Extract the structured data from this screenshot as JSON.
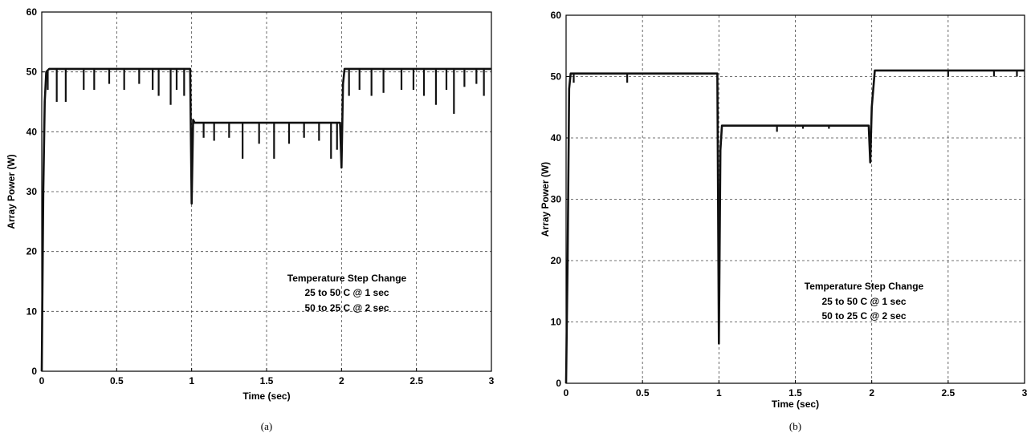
{
  "chart_data": [
    {
      "type": "line",
      "caption": "(a)",
      "xlabel": "Time (sec)",
      "ylabel": "Array Power (W)",
      "xlim": [
        0,
        3
      ],
      "ylim": [
        0,
        60
      ],
      "xticks": [
        "0",
        "0.5",
        "1",
        "1.5",
        "2",
        "2.5",
        "3"
      ],
      "yticks": [
        "0",
        "10",
        "20",
        "30",
        "40",
        "50",
        "60"
      ],
      "grid": true,
      "annotation": [
        "Temperature Step Change",
        "25 to 50 C @ 1 sec",
        "50 to 25 C @ 2 sec"
      ],
      "series": [
        {
          "x": [
            0,
            0.01,
            0.02,
            0.03,
            0.05,
            0.1,
            0.2,
            0.3,
            0.4,
            0.5,
            0.6,
            0.7,
            0.8,
            0.9,
            0.99,
            1.0,
            1.01,
            1.02,
            1.05,
            1.1,
            1.2,
            1.3,
            1.4,
            1.5,
            1.6,
            1.7,
            1.8,
            1.9,
            1.99,
            2.0,
            2.01,
            2.02,
            2.05,
            2.1,
            2.2,
            2.3,
            2.4,
            2.5,
            2.6,
            2.7,
            2.8,
            2.9,
            3.0
          ],
          "y": [
            0,
            30,
            45,
            50,
            50.5,
            50.5,
            50.5,
            50.5,
            50.5,
            50.5,
            50.5,
            50.5,
            50.5,
            50.5,
            50.5,
            28,
            42,
            41.5,
            41.5,
            41.5,
            41.5,
            41.5,
            41.5,
            41.5,
            41.5,
            41.5,
            41.5,
            41.5,
            41.5,
            34,
            48,
            50.5,
            50.5,
            50.5,
            50.5,
            50.5,
            50.5,
            50.5,
            50.5,
            50.5,
            50.5,
            50.5,
            50.5
          ],
          "dips": [
            [
              0.04,
              47
            ],
            [
              0.1,
              45
            ],
            [
              0.16,
              45
            ],
            [
              0.28,
              47
            ],
            [
              0.35,
              47
            ],
            [
              0.45,
              48
            ],
            [
              0.55,
              47
            ],
            [
              0.65,
              48
            ],
            [
              0.74,
              47
            ],
            [
              0.78,
              46
            ],
            [
              0.86,
              44.5
            ],
            [
              0.9,
              47
            ],
            [
              0.95,
              46
            ],
            [
              1.08,
              39
            ],
            [
              1.15,
              38.5
            ],
            [
              1.25,
              39
            ],
            [
              1.34,
              35.5
            ],
            [
              1.45,
              38
            ],
            [
              1.55,
              35.5
            ],
            [
              1.65,
              38
            ],
            [
              1.75,
              39
            ],
            [
              1.85,
              38.5
            ],
            [
              1.93,
              35.5
            ],
            [
              1.97,
              37
            ],
            [
              2.05,
              46
            ],
            [
              2.12,
              47
            ],
            [
              2.2,
              46
            ],
            [
              2.28,
              46.5
            ],
            [
              2.4,
              47
            ],
            [
              2.48,
              47
            ],
            [
              2.55,
              46
            ],
            [
              2.63,
              44.5
            ],
            [
              2.7,
              47
            ],
            [
              2.75,
              43
            ],
            [
              2.82,
              47.5
            ],
            [
              2.9,
              48
            ],
            [
              2.95,
              46
            ]
          ]
        }
      ]
    },
    {
      "type": "line",
      "caption": "(b)",
      "xlabel": "Time (sec)",
      "ylabel": "Array Power (W)",
      "xlim": [
        0,
        3
      ],
      "ylim": [
        0,
        60
      ],
      "xticks": [
        "0",
        "0.5",
        "1",
        "1.5",
        "2",
        "2.5",
        "3"
      ],
      "yticks": [
        "0",
        "10",
        "20",
        "30",
        "40",
        "50",
        "60"
      ],
      "grid": true,
      "annotation": [
        "Temperature Step Change",
        "25 to 50 C @ 1 sec",
        "50 to 25 C @ 2 sec"
      ],
      "series": [
        {
          "x": [
            0,
            0.01,
            0.02,
            0.03,
            0.05,
            0.1,
            0.2,
            0.3,
            0.4,
            0.5,
            0.6,
            0.7,
            0.8,
            0.9,
            0.99,
            1.0,
            1.01,
            1.02,
            1.05,
            1.1,
            1.2,
            1.3,
            1.4,
            1.5,
            1.6,
            1.7,
            1.8,
            1.9,
            1.98,
            1.99,
            2.0,
            2.02,
            2.05,
            2.1,
            2.2,
            2.3,
            2.4,
            2.5,
            2.6,
            2.7,
            2.8,
            2.9,
            3.0
          ],
          "y": [
            0,
            20,
            48,
            50.5,
            50.5,
            50.5,
            50.5,
            50.5,
            50.5,
            50.5,
            50.5,
            50.5,
            50.5,
            50.5,
            50.5,
            6.5,
            38,
            42,
            42,
            42,
            42,
            42,
            42,
            42,
            42,
            42,
            42,
            42,
            42,
            36,
            45,
            51,
            51,
            51,
            51,
            51,
            51,
            51,
            51,
            51,
            51,
            51,
            51
          ],
          "dips": [
            [
              0.05,
              49
            ],
            [
              0.4,
              49
            ],
            [
              1.38,
              41
            ],
            [
              1.55,
              41.5
            ],
            [
              1.72,
              41.5
            ],
            [
              2.5,
              50
            ],
            [
              2.8,
              50
            ],
            [
              2.95,
              50
            ]
          ]
        }
      ]
    }
  ]
}
